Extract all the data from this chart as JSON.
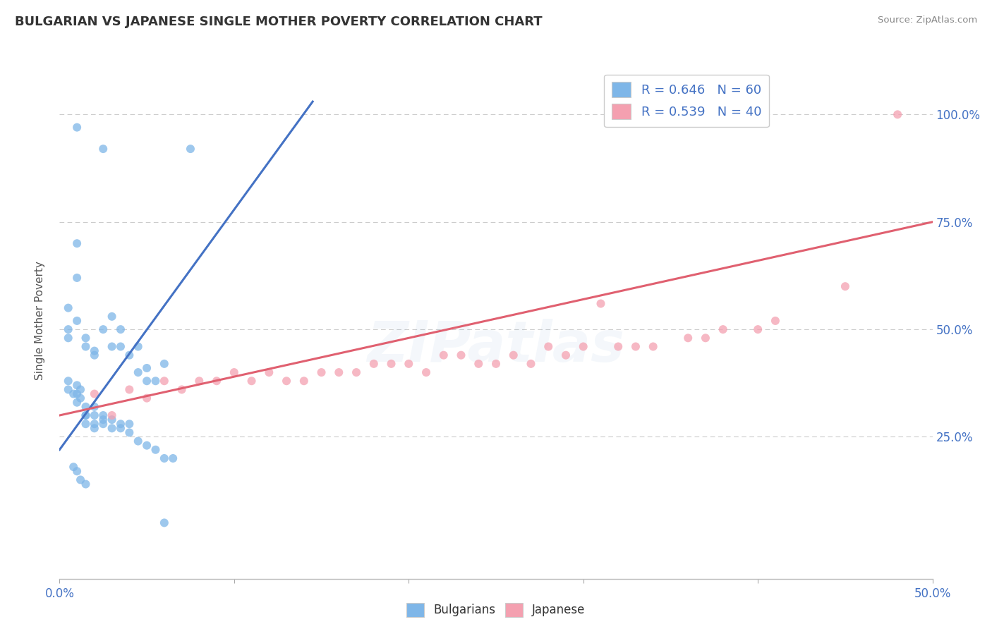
{
  "title": "BULGARIAN VS JAPANESE SINGLE MOTHER POVERTY CORRELATION CHART",
  "source": "Source: ZipAtlas.com",
  "xlabel": "",
  "ylabel": "Single Mother Poverty",
  "xlim": [
    0.0,
    0.5
  ],
  "ylim": [
    -0.08,
    1.12
  ],
  "xticks": [
    0.0,
    0.1,
    0.2,
    0.3,
    0.4,
    0.5
  ],
  "xtick_labels": [
    "0.0%",
    "",
    "",
    "",
    "",
    "50.0%"
  ],
  "ytick_labels_right": [
    "25.0%",
    "50.0%",
    "75.0%",
    "100.0%"
  ],
  "ytick_values_right": [
    0.25,
    0.5,
    0.75,
    1.0
  ],
  "watermark": "ZIPatlas",
  "blue_R": 0.646,
  "blue_N": 60,
  "pink_R": 0.539,
  "pink_N": 40,
  "blue_color": "#7EB6E8",
  "pink_color": "#F4A0B0",
  "blue_line_color": "#4472C4",
  "pink_line_color": "#E06070",
  "background_color": "#FFFFFF",
  "grid_color": "#CCCCCC",
  "title_color": "#333333",
  "blue_scatter_x": [
    0.01,
    0.025,
    0.075,
    0.01,
    0.01,
    0.005,
    0.005,
    0.005,
    0.01,
    0.015,
    0.015,
    0.02,
    0.02,
    0.025,
    0.03,
    0.03,
    0.035,
    0.035,
    0.04,
    0.045,
    0.045,
    0.05,
    0.05,
    0.055,
    0.06,
    0.005,
    0.005,
    0.008,
    0.01,
    0.01,
    0.01,
    0.012,
    0.012,
    0.015,
    0.015,
    0.015,
    0.015,
    0.02,
    0.02,
    0.02,
    0.02,
    0.025,
    0.025,
    0.025,
    0.03,
    0.03,
    0.035,
    0.035,
    0.04,
    0.04,
    0.045,
    0.05,
    0.055,
    0.06,
    0.065,
    0.008,
    0.01,
    0.012,
    0.015,
    0.06
  ],
  "blue_scatter_y": [
    0.97,
    0.92,
    0.92,
    0.7,
    0.62,
    0.55,
    0.5,
    0.48,
    0.52,
    0.46,
    0.48,
    0.45,
    0.44,
    0.5,
    0.53,
    0.46,
    0.5,
    0.46,
    0.44,
    0.46,
    0.4,
    0.41,
    0.38,
    0.38,
    0.42,
    0.38,
    0.36,
    0.35,
    0.37,
    0.35,
    0.33,
    0.36,
    0.34,
    0.32,
    0.3,
    0.3,
    0.28,
    0.32,
    0.3,
    0.28,
    0.27,
    0.3,
    0.29,
    0.28,
    0.29,
    0.27,
    0.28,
    0.27,
    0.28,
    0.26,
    0.24,
    0.23,
    0.22,
    0.2,
    0.2,
    0.18,
    0.17,
    0.15,
    0.14,
    0.05
  ],
  "pink_scatter_x": [
    0.02,
    0.04,
    0.06,
    0.08,
    0.1,
    0.12,
    0.14,
    0.16,
    0.18,
    0.2,
    0.22,
    0.24,
    0.26,
    0.28,
    0.3,
    0.32,
    0.34,
    0.36,
    0.38,
    0.4,
    0.05,
    0.09,
    0.13,
    0.17,
    0.21,
    0.25,
    0.29,
    0.33,
    0.37,
    0.41,
    0.45,
    0.03,
    0.07,
    0.11,
    0.15,
    0.19,
    0.23,
    0.27,
    0.31,
    0.48
  ],
  "pink_scatter_y": [
    0.35,
    0.36,
    0.38,
    0.38,
    0.4,
    0.4,
    0.38,
    0.4,
    0.42,
    0.42,
    0.44,
    0.42,
    0.44,
    0.46,
    0.46,
    0.46,
    0.46,
    0.48,
    0.5,
    0.5,
    0.34,
    0.38,
    0.38,
    0.4,
    0.4,
    0.42,
    0.44,
    0.46,
    0.48,
    0.52,
    0.6,
    0.3,
    0.36,
    0.38,
    0.4,
    0.42,
    0.44,
    0.42,
    0.56,
    1.0
  ],
  "blue_line_x": [
    0.0,
    0.145
  ],
  "blue_line_y": [
    0.22,
    1.03
  ],
  "pink_line_x": [
    0.0,
    0.5
  ],
  "pink_line_y": [
    0.3,
    0.75
  ]
}
